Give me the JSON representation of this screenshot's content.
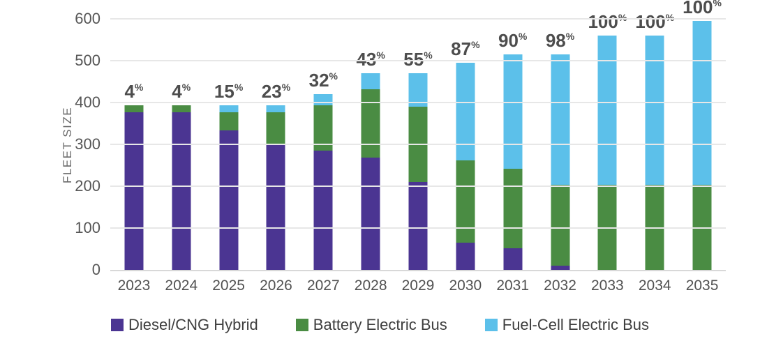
{
  "chart_data": {
    "type": "bar",
    "variant": "stacked",
    "title": "",
    "ylabel": "FLEET SIZE",
    "xlabel": "",
    "ylim": [
      0,
      600
    ],
    "yticks": [
      0,
      100,
      200,
      300,
      400,
      500,
      600
    ],
    "grid": true,
    "legend_position": "bottom",
    "categories": [
      "2023",
      "2024",
      "2025",
      "2026",
      "2027",
      "2028",
      "2029",
      "2030",
      "2031",
      "2032",
      "2033",
      "2034",
      "2035"
    ],
    "series": [
      {
        "name": "Diesel/CNG Hybrid",
        "color": "#4B3592",
        "values": [
          377,
          377,
          333,
          302,
          285,
          268,
          210,
          65,
          52,
          10,
          0,
          0,
          0
        ]
      },
      {
        "name": "Battery Electric Bus",
        "color": "#4A8C43",
        "values": [
          16,
          16,
          43,
          75,
          108,
          164,
          180,
          197,
          190,
          194,
          203,
          203,
          203
        ]
      },
      {
        "name": "Fuel-Cell Electric Bus",
        "color": "#5CC0EA",
        "values": [
          0,
          0,
          18,
          17,
          27,
          38,
          80,
          233,
          273,
          311,
          357,
          357,
          392
        ]
      }
    ],
    "bar_labels": [
      "4",
      "4",
      "15",
      "23",
      "32",
      "43",
      "55",
      "87",
      "90",
      "98",
      "100",
      "100",
      "100"
    ],
    "bar_label_suffix": "%",
    "colors": {
      "grid": "#e7e7e7",
      "axis": "#d8d8d8",
      "tick_text": "#565656",
      "bar_label_text": "#4d4d4d",
      "legend_text": "#3e3e3e"
    }
  }
}
